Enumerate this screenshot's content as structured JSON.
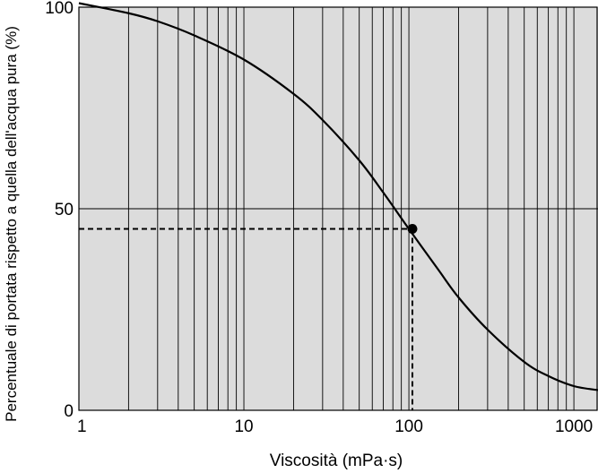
{
  "chart_data": {
    "type": "line",
    "x_scale": "log",
    "xlim": [
      1,
      1400
    ],
    "ylim": [
      0,
      100
    ],
    "xlabel": "Viscosità (mPa·s)",
    "ylabel": "Percentuale di portata rispetto a quella dell'acqua pura (%)",
    "x_ticks": [
      "1",
      "10",
      "100",
      "1000"
    ],
    "y_ticks": [
      "0",
      "50",
      "100"
    ],
    "grid": true,
    "background_color": "#dcdcdc",
    "line_color": "#000000",
    "series": [
      {
        "x": [
          1,
          2,
          3,
          5,
          10,
          20,
          30,
          50,
          70,
          100,
          150,
          200,
          300,
          500,
          700,
          1000,
          1400
        ],
        "y": [
          101,
          98.5,
          96.5,
          93,
          87,
          78.5,
          72,
          62,
          54,
          45,
          35,
          28,
          20,
          12,
          8.5,
          6,
          5
        ]
      }
    ],
    "highlight_point": {
      "x": 105,
      "y": 45
    }
  }
}
